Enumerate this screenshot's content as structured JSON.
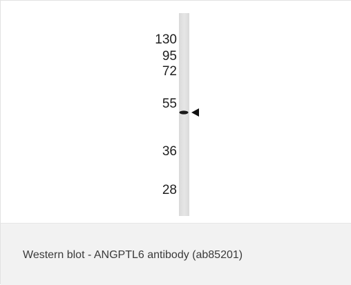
{
  "figure": {
    "markers": [
      "130",
      "95",
      "72",
      "55",
      "36",
      "28"
    ],
    "band_indicator": "arrowhead-left-icon",
    "caption": "Western blot - ANGPTL6 antibody (ab85201)",
    "colors": {
      "lane": "#e2e2e2",
      "band": "#1a1a1a",
      "caption_background": "#f2f2f2",
      "caption_text": "#3a3a3a"
    }
  }
}
